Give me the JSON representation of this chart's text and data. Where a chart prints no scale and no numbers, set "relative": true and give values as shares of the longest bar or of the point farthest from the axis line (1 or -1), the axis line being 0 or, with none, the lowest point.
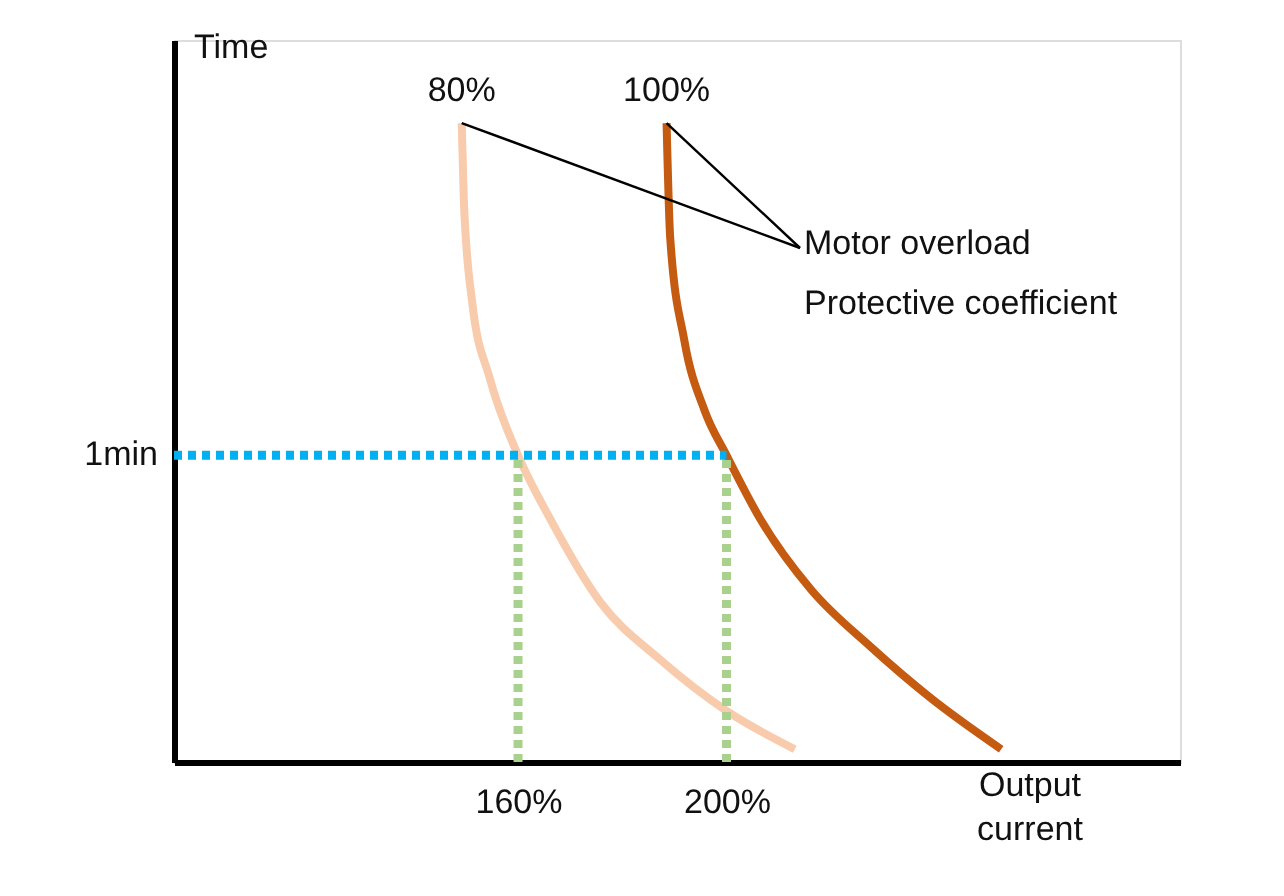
{
  "chart_data": {
    "type": "line",
    "relative": true,
    "xlabel": "Output\ncurrent",
    "ylabel": "Time",
    "xlim": [
      94,
      287
    ],
    "xticks": [
      {
        "value": 160,
        "label": "160%"
      },
      {
        "value": 200,
        "label": "200%"
      }
    ],
    "grid": false,
    "series": [
      {
        "name": "80%",
        "color": "#f8cbad",
        "line_style": "solid",
        "x": [
          149.2,
          149.6,
          151.2,
          154.6,
          160,
          166.2,
          175.8,
          187.3,
          200,
          213.1
        ],
        "values": [
          1,
          0.88,
          0.72,
          0.6,
          0.48,
          0.38,
          0.25,
          0.16,
          0.08,
          0.02
        ]
      },
      {
        "name": "100%",
        "color": "#c55a11",
        "line_style": "solid",
        "x": [
          188.5,
          189.2,
          191.9,
          195.8,
          200,
          206.5,
          216.2,
          227.7,
          239.2,
          252.7
        ],
        "values": [
          1,
          0.82,
          0.66,
          0.55,
          0.48,
          0.38,
          0.27,
          0.18,
          0.1,
          0.02
        ]
      },
      {
        "color": "#00b0f0",
        "line_style": "dotted",
        "x": [
          94,
          200
        ],
        "values": [
          0.48,
          0.48
        ]
      },
      {
        "color": "#a9d18e",
        "line_style": "dotted",
        "x": [
          160,
          160
        ],
        "values": [
          0,
          0.48
        ]
      },
      {
        "color": "#a9d18e",
        "line_style": "dotted",
        "x": [
          200,
          200
        ],
        "values": [
          0,
          0.48
        ]
      }
    ],
    "annotations": [
      "1min",
      "Motor overload\nProtective coefficient"
    ]
  }
}
